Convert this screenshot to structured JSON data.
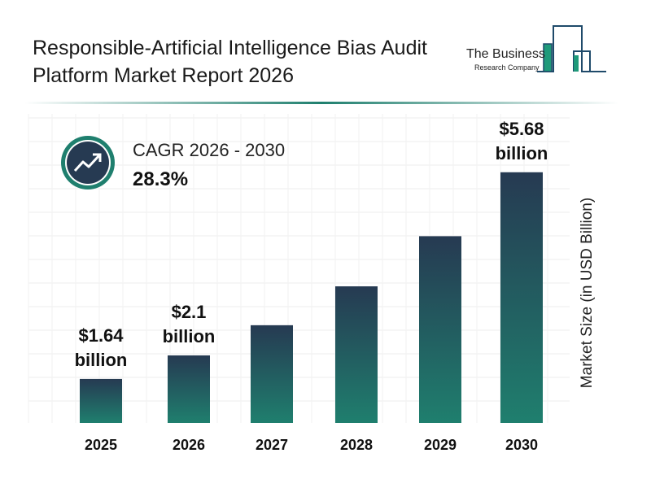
{
  "title": "Responsible-Artificial Intelligence Bias Audit Platform Market Report 2026",
  "logo": {
    "line1": "The Business",
    "line2": "Research Company"
  },
  "cagr": {
    "label": "CAGR 2026 - 2030",
    "value": "28.3%",
    "icon": "trending-up-icon"
  },
  "colors": {
    "bar_top": "#263a52",
    "bar_bottom": "#1f7f6e",
    "accent": "#1f7f6e"
  },
  "chart_data": {
    "type": "bar",
    "categories": [
      "2025",
      "2026",
      "2027",
      "2028",
      "2029",
      "2030"
    ],
    "values": [
      1.64,
      2.1,
      2.69,
      3.45,
      4.43,
      5.68
    ],
    "data_labels": [
      "$1.64 billion",
      "$2.1 billion",
      "",
      "",
      "",
      "$5.68 billion"
    ],
    "ylabel": "Market Size (in USD Billion)",
    "grid": true
  }
}
